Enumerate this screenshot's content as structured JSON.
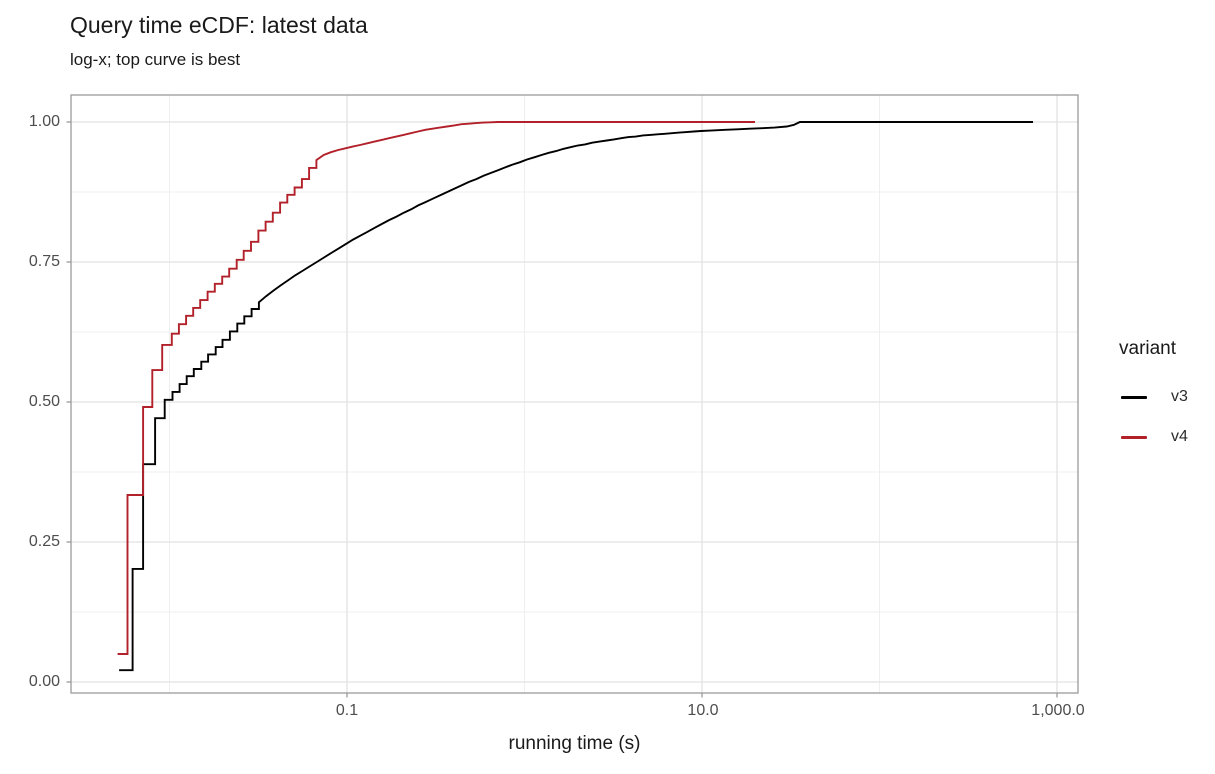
{
  "chart_data": {
    "type": "line",
    "subtype": "ecdf-step",
    "title": "Query time eCDF: latest data",
    "subtitle": "log-x; top curve is best",
    "xlabel": "running time (s)",
    "ylabel": "",
    "x_scale": "log10",
    "xlim": [
      0.0028,
      1310
    ],
    "ylim": [
      0.0,
      1.0
    ],
    "grid": "major+minor",
    "legend": {
      "title": "variant",
      "position": "right"
    },
    "x_ticks": [
      {
        "v": 0.1,
        "label": "0.1"
      },
      {
        "v": 10,
        "label": "10.0"
      },
      {
        "v": 1000,
        "label": "1,000.0"
      }
    ],
    "x_minor_ticks": [
      0.01,
      1,
      100
    ],
    "y_ticks": [
      {
        "v": 1.0,
        "label": "1.00"
      },
      {
        "v": 0.75,
        "label": "0.75"
      },
      {
        "v": 0.5,
        "label": "0.50"
      },
      {
        "v": 0.25,
        "label": "0.25"
      },
      {
        "v": 0.0,
        "label": "0.00"
      }
    ],
    "y_minor_ticks": [
      0.125,
      0.375,
      0.625,
      0.875
    ],
    "series": [
      {
        "name": "v3",
        "color": "#000000",
        "points": [
          [
            0.0052,
            0.021
          ],
          [
            0.0062,
            0.202
          ],
          [
            0.0071,
            0.389
          ],
          [
            0.0083,
            0.471
          ],
          [
            0.0094,
            0.504
          ],
          [
            0.0104,
            0.518
          ],
          [
            0.0114,
            0.532
          ],
          [
            0.0125,
            0.546
          ],
          [
            0.0137,
            0.559
          ],
          [
            0.0151,
            0.572
          ],
          [
            0.0165,
            0.585
          ],
          [
            0.0182,
            0.598
          ],
          [
            0.0199,
            0.611
          ],
          [
            0.0219,
            0.626
          ],
          [
            0.0241,
            0.64
          ],
          [
            0.0264,
            0.653
          ],
          [
            0.029,
            0.666
          ],
          [
            0.0319,
            0.678
          ],
          [
            0.035,
            0.689
          ],
          [
            0.0385,
            0.699
          ],
          [
            0.0422,
            0.708
          ],
          [
            0.0464,
            0.717
          ],
          [
            0.051,
            0.726
          ],
          [
            0.056,
            0.734
          ],
          [
            0.0615,
            0.742
          ],
          [
            0.0676,
            0.75
          ],
          [
            0.0742,
            0.758
          ],
          [
            0.0815,
            0.766
          ],
          [
            0.0896,
            0.774
          ],
          [
            0.0984,
            0.782
          ],
          [
            0.1081,
            0.79
          ],
          [
            0.1188,
            0.797
          ],
          [
            0.1305,
            0.804
          ],
          [
            0.1433,
            0.811
          ],
          [
            0.1575,
            0.818
          ],
          [
            0.173,
            0.825
          ],
          [
            0.1901,
            0.831
          ],
          [
            0.2088,
            0.838
          ],
          [
            0.2294,
            0.844
          ],
          [
            0.252,
            0.851
          ],
          [
            0.2769,
            0.857
          ],
          [
            0.3042,
            0.863
          ],
          [
            0.3342,
            0.869
          ],
          [
            0.3671,
            0.875
          ],
          [
            0.4033,
            0.881
          ],
          [
            0.4431,
            0.887
          ],
          [
            0.4868,
            0.893
          ],
          [
            0.5348,
            0.898
          ],
          [
            0.5875,
            0.904
          ],
          [
            0.6454,
            0.909
          ],
          [
            0.7091,
            0.914
          ],
          [
            0.779,
            0.919
          ],
          [
            0.8558,
            0.924
          ],
          [
            0.9402,
            0.928
          ],
          [
            1.033,
            0.933
          ],
          [
            1.135,
            0.937
          ],
          [
            1.247,
            0.941
          ],
          [
            1.37,
            0.945
          ],
          [
            1.504,
            0.948
          ],
          [
            1.653,
            0.952
          ],
          [
            1.816,
            0.955
          ],
          [
            1.995,
            0.958
          ],
          [
            2.191,
            0.96
          ],
          [
            2.407,
            0.963
          ],
          [
            2.645,
            0.965
          ],
          [
            2.906,
            0.967
          ],
          [
            3.192,
            0.969
          ],
          [
            3.507,
            0.971
          ],
          [
            3.852,
            0.973
          ],
          [
            4.232,
            0.974
          ],
          [
            4.649,
            0.976
          ],
          [
            5.107,
            0.977
          ],
          [
            5.611,
            0.978
          ],
          [
            6.164,
            0.979
          ],
          [
            6.771,
            0.98
          ],
          [
            7.438,
            0.981
          ],
          [
            8.172,
            0.982
          ],
          [
            8.977,
            0.983
          ],
          [
            9.862,
            0.984
          ],
          [
            11.5,
            0.985
          ],
          [
            13.5,
            0.986
          ],
          [
            15.8,
            0.987
          ],
          [
            18.6,
            0.988
          ],
          [
            21.8,
            0.989
          ],
          [
            25.6,
            0.99
          ],
          [
            30.0,
            0.992
          ],
          [
            33.0,
            0.995
          ],
          [
            35.6,
            1.0
          ],
          [
            732,
            1.0
          ]
        ]
      },
      {
        "name": "v4",
        "color": "#b2202a",
        "points": [
          [
            0.0051,
            0.05
          ],
          [
            0.0058,
            0.334
          ],
          [
            0.0071,
            0.491
          ],
          [
            0.008,
            0.557
          ],
          [
            0.0091,
            0.602
          ],
          [
            0.0103,
            0.622
          ],
          [
            0.0113,
            0.639
          ],
          [
            0.0124,
            0.654
          ],
          [
            0.0136,
            0.668
          ],
          [
            0.0149,
            0.682
          ],
          [
            0.0164,
            0.697
          ],
          [
            0.018,
            0.711
          ],
          [
            0.0198,
            0.724
          ],
          [
            0.0217,
            0.738
          ],
          [
            0.0239,
            0.754
          ],
          [
            0.0262,
            0.77
          ],
          [
            0.0288,
            0.786
          ],
          [
            0.0317,
            0.806
          ],
          [
            0.0348,
            0.822
          ],
          [
            0.0382,
            0.838
          ],
          [
            0.042,
            0.856
          ],
          [
            0.0461,
            0.87
          ],
          [
            0.0507,
            0.883
          ],
          [
            0.0557,
            0.898
          ],
          [
            0.0612,
            0.918
          ],
          [
            0.0672,
            0.932
          ],
          [
            0.0739,
            0.941
          ],
          [
            0.0812,
            0.946
          ],
          [
            0.0892,
            0.95
          ],
          [
            0.098,
            0.953
          ],
          [
            0.1077,
            0.956
          ],
          [
            0.1183,
            0.959
          ],
          [
            0.13,
            0.962
          ],
          [
            0.1428,
            0.965
          ],
          [
            0.1569,
            0.968
          ],
          [
            0.1724,
            0.971
          ],
          [
            0.1894,
            0.974
          ],
          [
            0.2081,
            0.977
          ],
          [
            0.2287,
            0.98
          ],
          [
            0.2512,
            0.983
          ],
          [
            0.276,
            0.986
          ],
          [
            0.3033,
            0.988
          ],
          [
            0.3332,
            0.99
          ],
          [
            0.3661,
            0.992
          ],
          [
            0.4022,
            0.994
          ],
          [
            0.4419,
            0.996
          ],
          [
            0.4856,
            0.997
          ],
          [
            0.5335,
            0.998
          ],
          [
            0.5862,
            0.999
          ],
          [
            0.644,
            0.9995
          ],
          [
            0.708,
            1.0
          ],
          [
            19.9,
            1.0
          ]
        ]
      }
    ],
    "style_colors": {
      "panel_border": "#9b9b9b",
      "grid_major": "#e2e2e2",
      "grid_minor": "#efefef",
      "tick_mark": "#9b9b9b",
      "tick_text": "#4d4d4d",
      "text": "#1a1a1a"
    }
  }
}
